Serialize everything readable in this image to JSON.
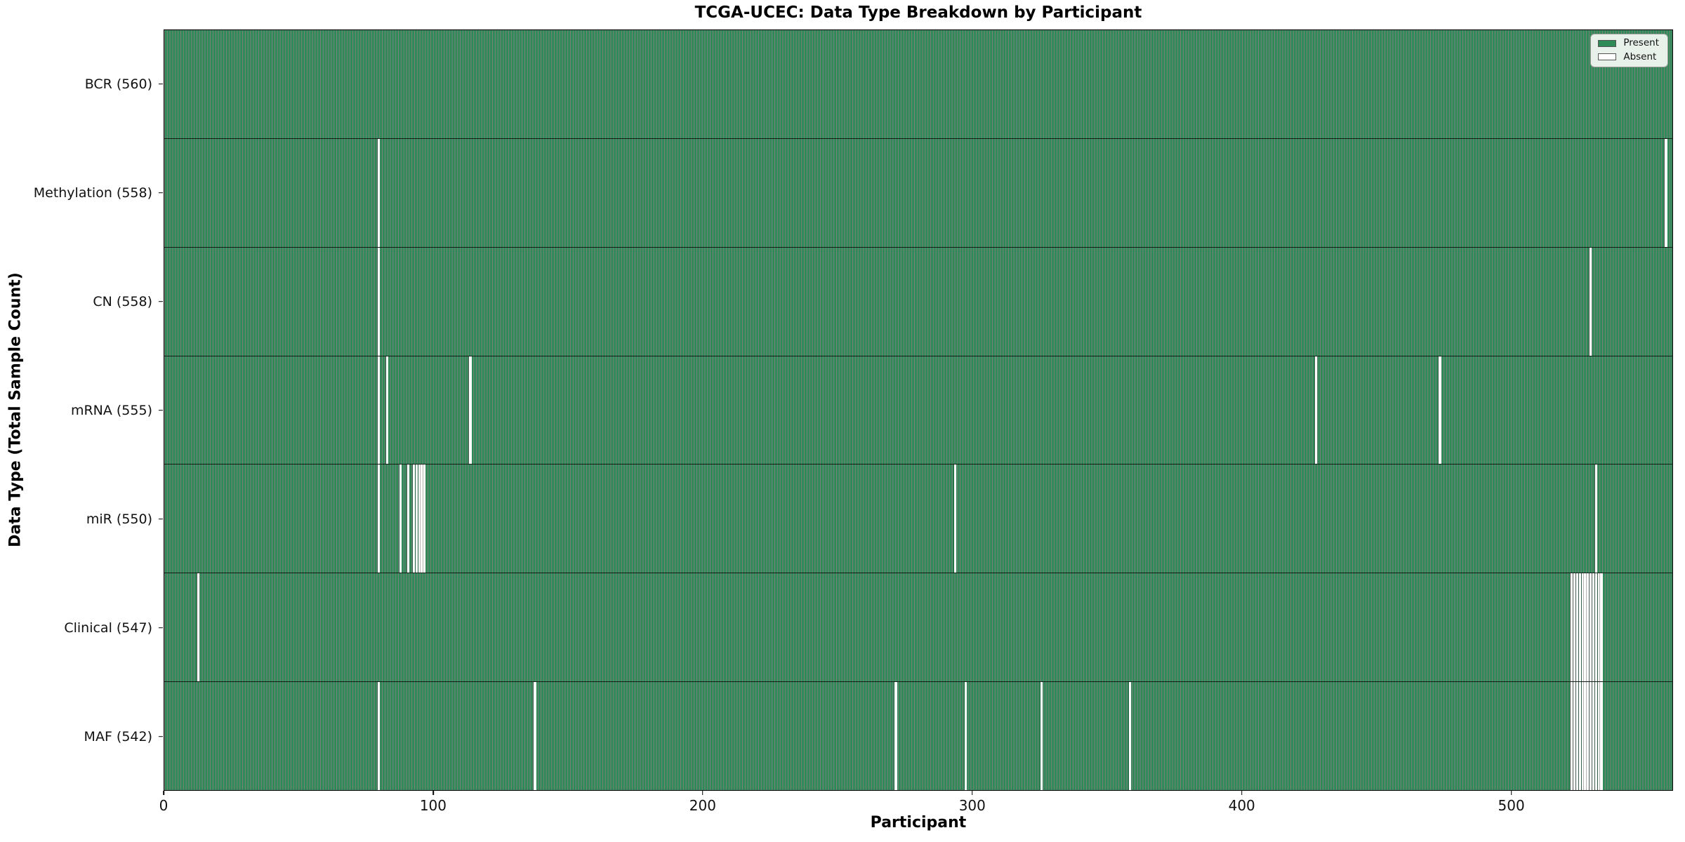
{
  "chart_data": {
    "type": "heatmap",
    "title": "TCGA-UCEC: Data Type Breakdown by Participant",
    "xlabel": "Participant",
    "ylabel": "Data Type (Total Sample Count)",
    "x_range": [
      0,
      560
    ],
    "n_participants": 560,
    "x_ticks": [
      0,
      100,
      200,
      300,
      400,
      500
    ],
    "grid": false,
    "legend_position": "upper right",
    "legend": {
      "present_label": "Present",
      "absent_label": "Absent"
    },
    "colors": {
      "present": "#2e8b57",
      "absent": "#ffffff",
      "bar_edge_on_present": "rgba(0,0,0,0.50)",
      "bar_edge_on_absent": "rgba(0,0,0,0.30)",
      "row_divider": "rgba(0,0,0,0.78)",
      "spine": "#000000"
    },
    "rows": [
      {
        "key": "bcr",
        "label": "BCR (560)",
        "data_type": "BCR",
        "present_count": 560,
        "absent_participants": []
      },
      {
        "key": "methylation",
        "label": "Methylation (558)",
        "data_type": "Methylation",
        "present_count": 558,
        "absent_participants": [
          79,
          557
        ]
      },
      {
        "key": "cn",
        "label": "CN (558)",
        "data_type": "CN",
        "present_count": 558,
        "absent_participants": [
          79,
          529
        ]
      },
      {
        "key": "mrna",
        "label": "mRNA (555)",
        "data_type": "mRNA",
        "present_count": 555,
        "absent_participants": [
          79,
          82,
          113,
          427,
          473
        ]
      },
      {
        "key": "mir",
        "label": "miR (550)",
        "data_type": "miR",
        "present_count": 550,
        "absent_participants": [
          79,
          87,
          90,
          92,
          93,
          94,
          95,
          96,
          293,
          531
        ]
      },
      {
        "key": "clinical",
        "label": "Clinical (547)",
        "data_type": "Clinical",
        "present_count": 547,
        "absent_participants": [
          12,
          522,
          523,
          524,
          525,
          526,
          527,
          528,
          529,
          530,
          531,
          532,
          533
        ]
      },
      {
        "key": "maf",
        "label": "MAF (542)",
        "data_type": "MAF",
        "present_count": 542,
        "absent_participants": [
          79,
          137,
          271,
          297,
          325,
          358,
          522,
          523,
          524,
          525,
          526,
          527,
          528,
          529,
          530,
          531,
          532,
          533
        ]
      }
    ]
  }
}
